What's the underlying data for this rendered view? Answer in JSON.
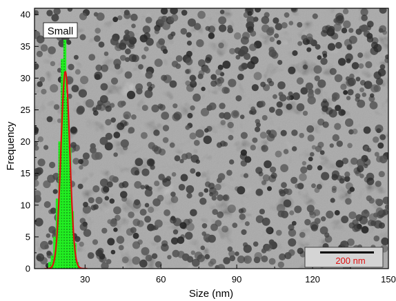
{
  "chart_data": {
    "type": "bar",
    "label": "Small",
    "xlabel": "Size (nm)",
    "ylabel": "Frequency",
    "xlim": [
      10,
      150
    ],
    "ylim": [
      0,
      41
    ],
    "x_ticks": [
      30,
      60,
      90,
      120,
      150
    ],
    "y_ticks": [
      0,
      5,
      10,
      15,
      20,
      25,
      30,
      35,
      40
    ],
    "scale_bar": "200 nm",
    "bar_color": "#22ee22",
    "fit_color": "#dd1111",
    "bars": [
      {
        "x": 16,
        "y": 1
      },
      {
        "x": 17,
        "y": 2
      },
      {
        "x": 18,
        "y": 5
      },
      {
        "x": 19,
        "y": 11
      },
      {
        "x": 20,
        "y": 20
      },
      {
        "x": 21,
        "y": 33
      },
      {
        "x": 22,
        "y": 36
      },
      {
        "x": 23,
        "y": 27
      },
      {
        "x": 24,
        "y": 19
      },
      {
        "x": 25,
        "y": 9
      },
      {
        "x": 26,
        "y": 4
      },
      {
        "x": 27,
        "y": 1
      }
    ],
    "fit": {
      "center": 22.2,
      "sigma": 1.75,
      "peak": 31
    },
    "grid": false
  }
}
